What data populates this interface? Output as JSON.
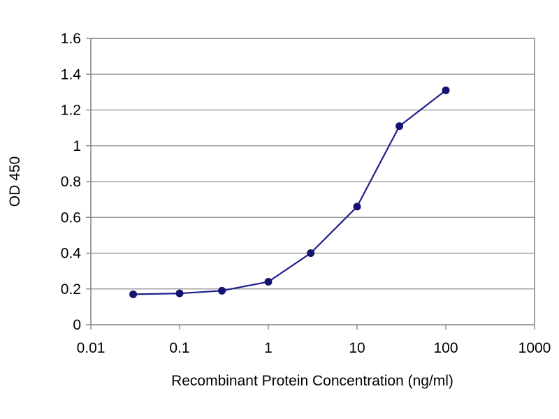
{
  "chart_data": {
    "type": "line",
    "title": "",
    "xlabel": "Recombinant Protein Concentration (ng/ml)",
    "ylabel": "OD 450",
    "x_scale": "log",
    "xlim": [
      0.01,
      1000
    ],
    "ylim": [
      0,
      1.6
    ],
    "x_ticks": [
      0.01,
      0.1,
      1,
      10,
      100,
      1000
    ],
    "x_tick_labels": [
      "0.01",
      "0.1",
      "1",
      "10",
      "100",
      "1000"
    ],
    "y_ticks": [
      0,
      0.2,
      0.4,
      0.6,
      0.8,
      1,
      1.2,
      1.4,
      1.6
    ],
    "y_tick_labels": [
      "0",
      "0.2",
      "0.4",
      "0.6",
      "0.8",
      "1",
      "1.2",
      "1.4",
      "1.6"
    ],
    "grid": "horizontal",
    "legend": "none",
    "series": [
      {
        "color": "#1f1f8f",
        "x": [
          0.03,
          0.1,
          0.3,
          1,
          3,
          10,
          30,
          100
        ],
        "y": [
          0.17,
          0.175,
          0.19,
          0.24,
          0.4,
          0.66,
          1.11,
          1.31
        ]
      }
    ]
  }
}
